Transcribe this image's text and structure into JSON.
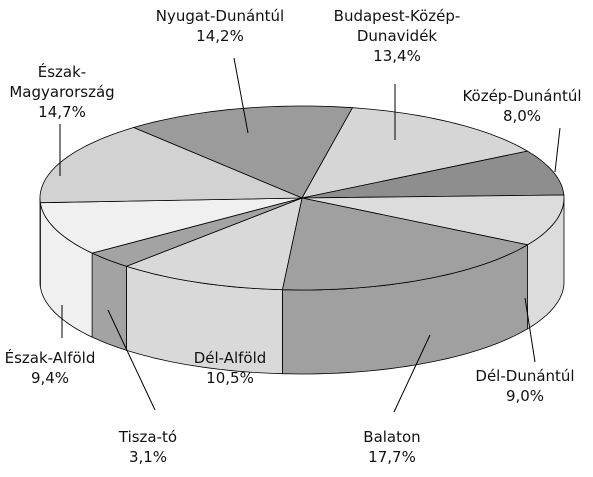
{
  "chart_data": {
    "type": "pie3d",
    "categories": [
      "Nyugat-Dunántúl",
      "Budapest-Közép-Dunavidék",
      "Közép-Dunántúl",
      "Dél-Dunántúl",
      "Balaton",
      "Dél-Alföld",
      "Tisza-tó",
      "Észak-Alföld",
      "Észak-Magyarország"
    ],
    "values": [
      14.2,
      13.4,
      8.0,
      9.0,
      17.7,
      10.5,
      3.1,
      9.4,
      14.7
    ],
    "value_labels": [
      "14,2%",
      "13,4%",
      "8,0%",
      "9,0%",
      "17,7%",
      "10,5%",
      "3,1%",
      "9,4%",
      "14,7%"
    ],
    "colors": [
      "#9b9b9b",
      "#d6d6d6",
      "#8e8e8e",
      "#dcdcdc",
      "#a0a0a0",
      "#d9d9d9",
      "#a3a3a3",
      "#f0f0f0",
      "#d2d2d2"
    ]
  }
}
